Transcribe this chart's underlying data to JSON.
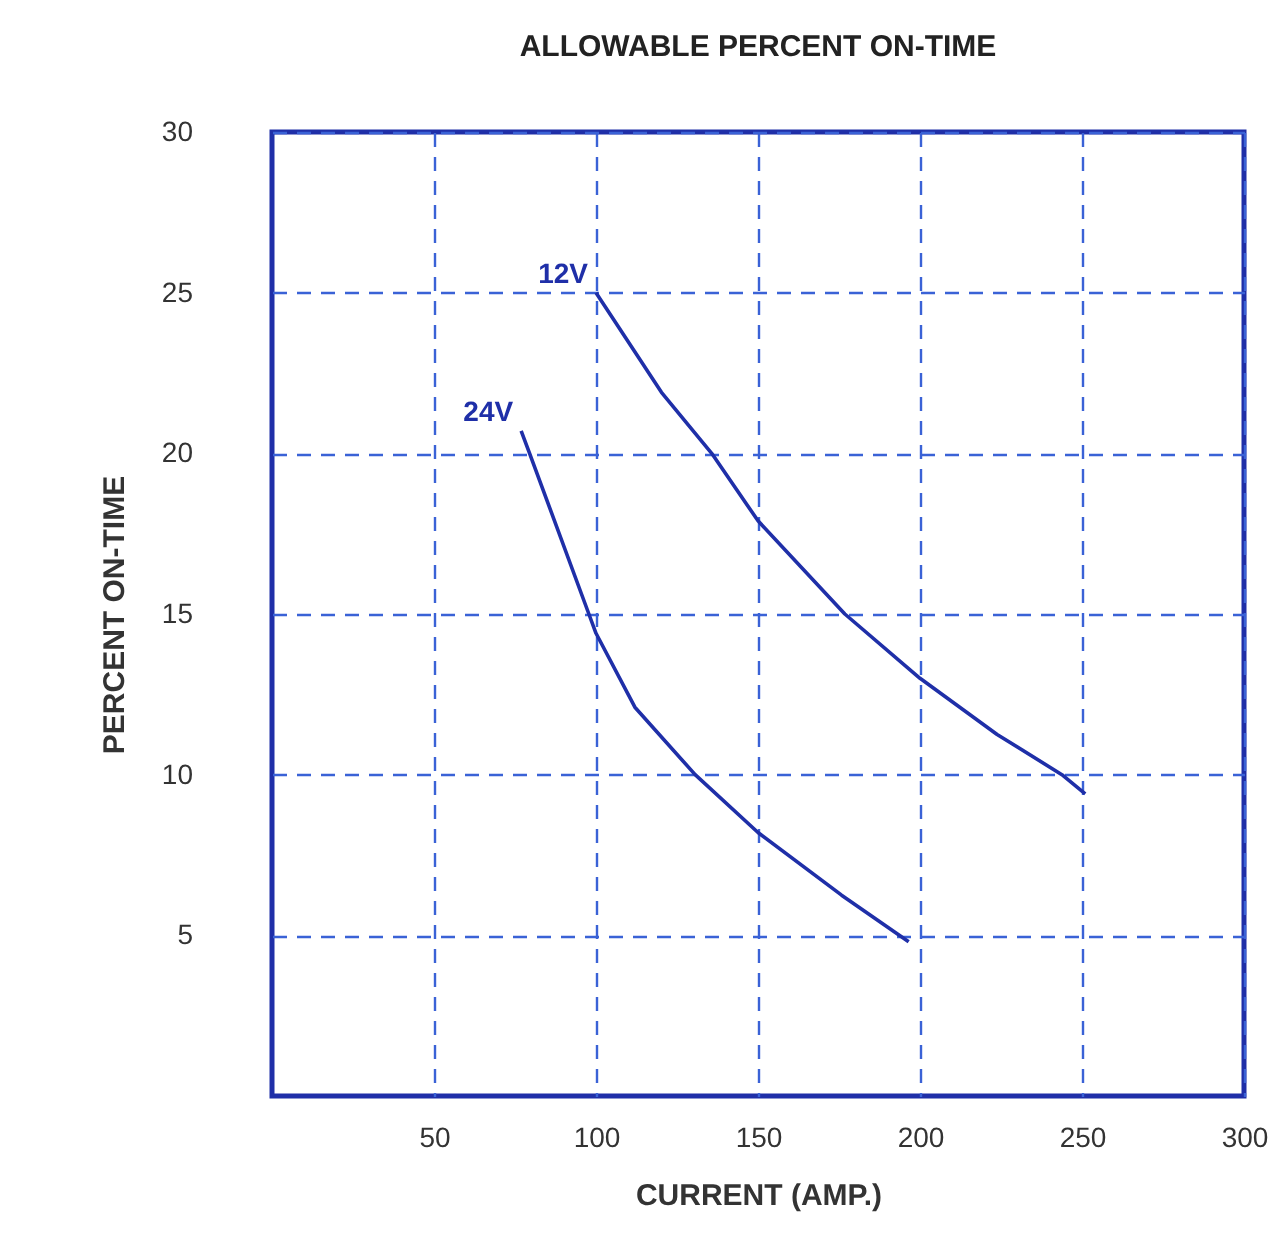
{
  "chart_data": {
    "type": "line",
    "title": "ALLOWABLE PERCENT ON-TIME",
    "xlabel": "CURRENT (AMP.)",
    "ylabel": "PERCENT ON-TIME",
    "xlim": [
      0,
      300
    ],
    "xticks": [
      50,
      100,
      150,
      200,
      250,
      300
    ],
    "ylim": [
      0,
      30
    ],
    "yticks": [
      5,
      10,
      15,
      20,
      25,
      30
    ],
    "grid": true,
    "line_style": "solid",
    "marker": "none",
    "series": [
      {
        "name": "12V",
        "color": "#1f2fa8",
        "x": [
          100,
          120.2,
          135.7,
          150,
          176.8,
          200,
          223.8,
          243.8,
          251
        ],
        "values": [
          25,
          21.9,
          20,
          17.9,
          15,
          13.0,
          11.25,
          10,
          9.4
        ]
      },
      {
        "name": "24V",
        "color": "#1f2fa8",
        "x": [
          76.9,
          79.5,
          97.8,
          100,
          112,
          130.6,
          150,
          175.8,
          196.5
        ],
        "values": [
          20.7,
          20,
          15,
          14.4,
          12.1,
          10,
          8.2,
          6.25,
          4.8
        ]
      }
    ]
  }
}
